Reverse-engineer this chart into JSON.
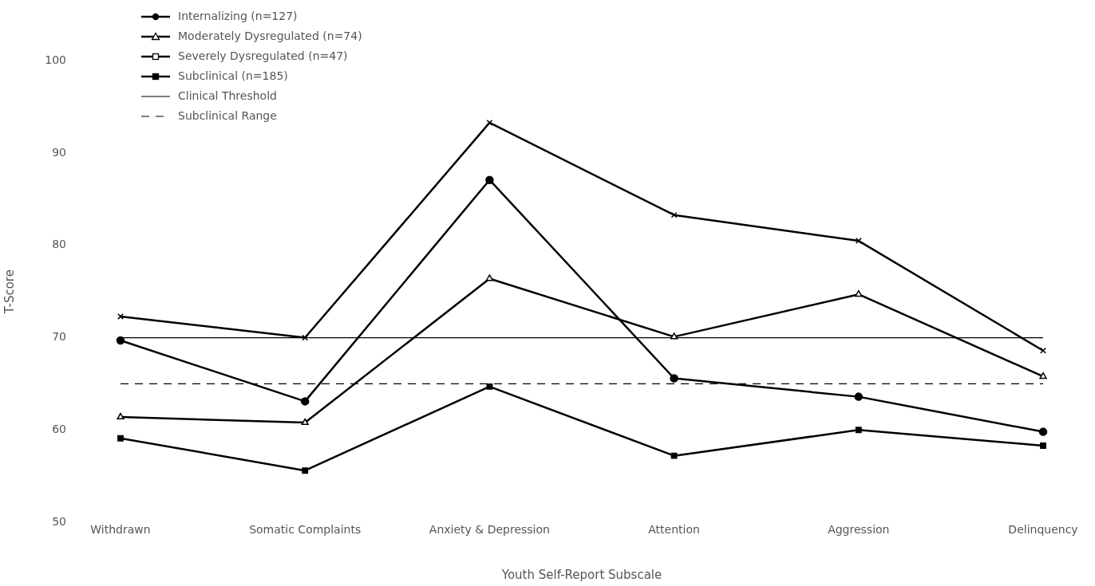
{
  "chart_data": {
    "type": "line",
    "xlabel": "Youth Self-Report Subscale",
    "ylabel": "T-Score",
    "categories": [
      "Withdrawn",
      "Somatic Complaints",
      "Anxiety & Depression",
      "Attention",
      "Aggression",
      "Delinquency"
    ],
    "series": [
      {
        "name": "Internalizing (n=127)",
        "color": "#000000",
        "marker": "circle",
        "values": [
          69.7,
          63.1,
          87.1,
          65.6,
          63.6,
          59.8
        ]
      },
      {
        "name": "Moderately Dysregulated (n=74)",
        "color": "#000000",
        "marker": "triangle",
        "values": [
          61.4,
          60.8,
          76.4,
          70.1,
          74.7,
          65.8
        ]
      },
      {
        "name": "Severely Dysregulated (n=47)",
        "color": "#000000",
        "marker": "cross",
        "values": [
          72.3,
          70.0,
          93.3,
          83.3,
          80.5,
          68.6
        ]
      },
      {
        "name": "Subclinical (n=185)",
        "color": "#000000",
        "marker": "square",
        "values": [
          59.1,
          55.6,
          64.7,
          57.2,
          60.0,
          58.3
        ]
      }
    ],
    "ref_lines": [
      {
        "axis": "y",
        "value": 70,
        "label": "Clinical Threshold",
        "color": "#000000",
        "line_style": "solid"
      },
      {
        "axis": "y",
        "value": 65,
        "label": "Subclinical Range",
        "color": "#000000",
        "line_style": "dashed"
      }
    ],
    "ylim": [
      50,
      100
    ],
    "yticks": [
      50,
      60,
      70,
      80,
      90,
      100
    ],
    "grid": false,
    "legend": "top left"
  }
}
